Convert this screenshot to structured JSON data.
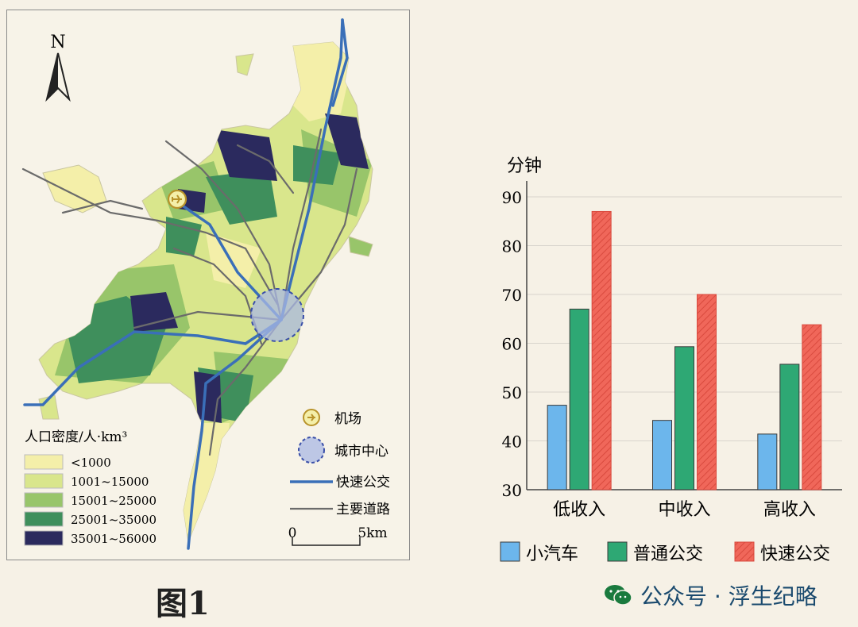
{
  "map": {
    "north_label": "N",
    "legend_title": "人口密度/人·km³",
    "legend": [
      {
        "label": "<1000",
        "color": "#f4efa9"
      },
      {
        "label": "1001~15000",
        "color": "#d9e68c"
      },
      {
        "label": "15001~25000",
        "color": "#98c56a"
      },
      {
        "label": "25001~35000",
        "color": "#3f8f5c"
      },
      {
        "label": "35001~56000",
        "color": "#2b2a5e"
      }
    ],
    "symbols": [
      {
        "key": "airport",
        "label": "机场"
      },
      {
        "key": "city_center",
        "label": "城市中心"
      },
      {
        "key": "brt",
        "label": "快速公交",
        "color": "#3a6fb8"
      },
      {
        "key": "road",
        "label": "主要道路",
        "color": "#6b6b6b"
      }
    ],
    "scale": {
      "start": "0",
      "end": "5km"
    }
  },
  "figure_label": "图1",
  "watermark": "公众号 · 浮生纪略",
  "chart_data": {
    "type": "bar",
    "ylabel": "分钟",
    "ylim": [
      30,
      90
    ],
    "yticks": [
      30,
      40,
      50,
      60,
      70,
      80,
      90
    ],
    "categories": [
      "低收入",
      "中收入",
      "高收入"
    ],
    "series": [
      {
        "name": "小汽车",
        "values": [
          47.3,
          44.2,
          41.4
        ],
        "color": "#6cb6ec"
      },
      {
        "name": "普通公交",
        "values": [
          67,
          59.3,
          55.7
        ],
        "color": "#2ea874"
      },
      {
        "name": "快速公交",
        "values": [
          87,
          70,
          63.8
        ],
        "color": "#f0675a",
        "hatched": true
      }
    ],
    "legend_position": "bottom",
    "grid": true
  }
}
